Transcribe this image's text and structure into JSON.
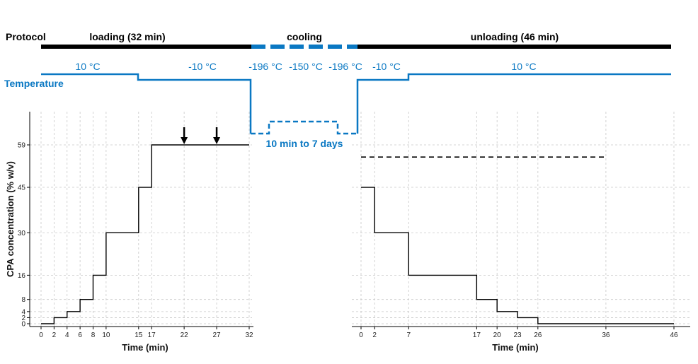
{
  "protocol": {
    "label": "Protocol",
    "loading_label": "loading (32 min)",
    "cooling_label": "cooling",
    "unloading_label": "unloading (46 min)"
  },
  "temperature": {
    "label": "Temperature",
    "t1": "10 °C",
    "t2": "-10 °C",
    "t3": "-196 °C",
    "t4": "-150 °C",
    "t5": "-196 °C",
    "t6": "-10 °C",
    "t7": "10 °C",
    "storage": "10 min to 7 days"
  },
  "colors": {
    "temperature": "#0a78c3",
    "protocol_bar": "#000000",
    "line": "#000000",
    "grid": "#c8c8c8"
  },
  "chart_data": [
    {
      "type": "line",
      "step": true,
      "title": "",
      "xlabel": "Time (min)",
      "ylabel": "CPA concentration (% w/v)",
      "xlim": [
        0,
        32
      ],
      "ylim": [
        0,
        59
      ],
      "grid": true,
      "x_ticks": [
        0,
        2,
        4,
        6,
        8,
        10,
        15,
        17,
        22,
        27,
        32
      ],
      "y_ticks": [
        0,
        2,
        4,
        8,
        16,
        30,
        45,
        59
      ],
      "series": [
        {
          "x": [
            0,
            2,
            4,
            6,
            8,
            10,
            15,
            17,
            32
          ],
          "y": [
            0,
            2,
            4,
            8,
            16,
            30,
            45,
            59,
            59
          ]
        }
      ],
      "arrows": [
        22,
        27
      ]
    },
    {
      "type": "line",
      "step": true,
      "title": "",
      "xlabel": "Time (min)",
      "ylabel": "",
      "xlim": [
        0,
        46
      ],
      "ylim": [
        0,
        59
      ],
      "grid": true,
      "x_ticks": [
        0,
        2,
        7,
        17,
        20,
        23,
        26,
        36,
        46
      ],
      "y_ticks": [
        0,
        2,
        4,
        8,
        16,
        30,
        45,
        59
      ],
      "series": [
        {
          "x": [
            0,
            2,
            7,
            17,
            20,
            23,
            26,
            46
          ],
          "y": [
            45,
            30,
            16,
            8,
            4,
            2,
            0,
            0
          ]
        }
      ],
      "dashed_line": {
        "x": [
          0,
          36
        ],
        "y": 55
      }
    }
  ]
}
